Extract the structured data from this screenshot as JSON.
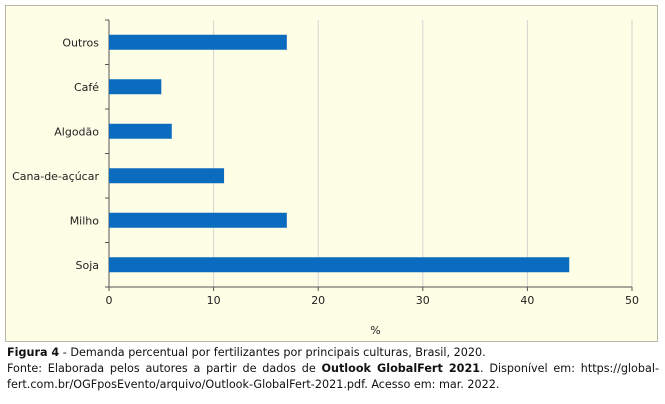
{
  "chart_data": {
    "type": "bar",
    "orientation": "horizontal",
    "categories": [
      "Outros",
      "Café",
      "Algodão",
      "Cana-de-açúcar",
      "Milho",
      "Soja"
    ],
    "values": [
      17,
      5,
      6,
      11,
      17,
      44
    ],
    "xlabel": "%",
    "xlim": [
      0,
      50
    ],
    "xticks": [
      0,
      10,
      20,
      30,
      40,
      50
    ],
    "grid": "vertical",
    "bar_color": "#0a6bbf",
    "legend": "none"
  },
  "caption": {
    "figure_label": "Figura 4",
    "figure_title": " - Demanda percentual por fertilizantes por principais culturas, Brasil, 2020.",
    "source_prefix": "Fonte: Elaborada pelos autores a partir de dados de ",
    "source_bold": "Outlook GlobalFert 2021",
    "source_suffix": ". Disponível em:  https://global-fert.com.br/OGFposEvento/arquivo/Outlook-GlobalFert-2021.pdf. Acesso em: mar. 2022."
  }
}
